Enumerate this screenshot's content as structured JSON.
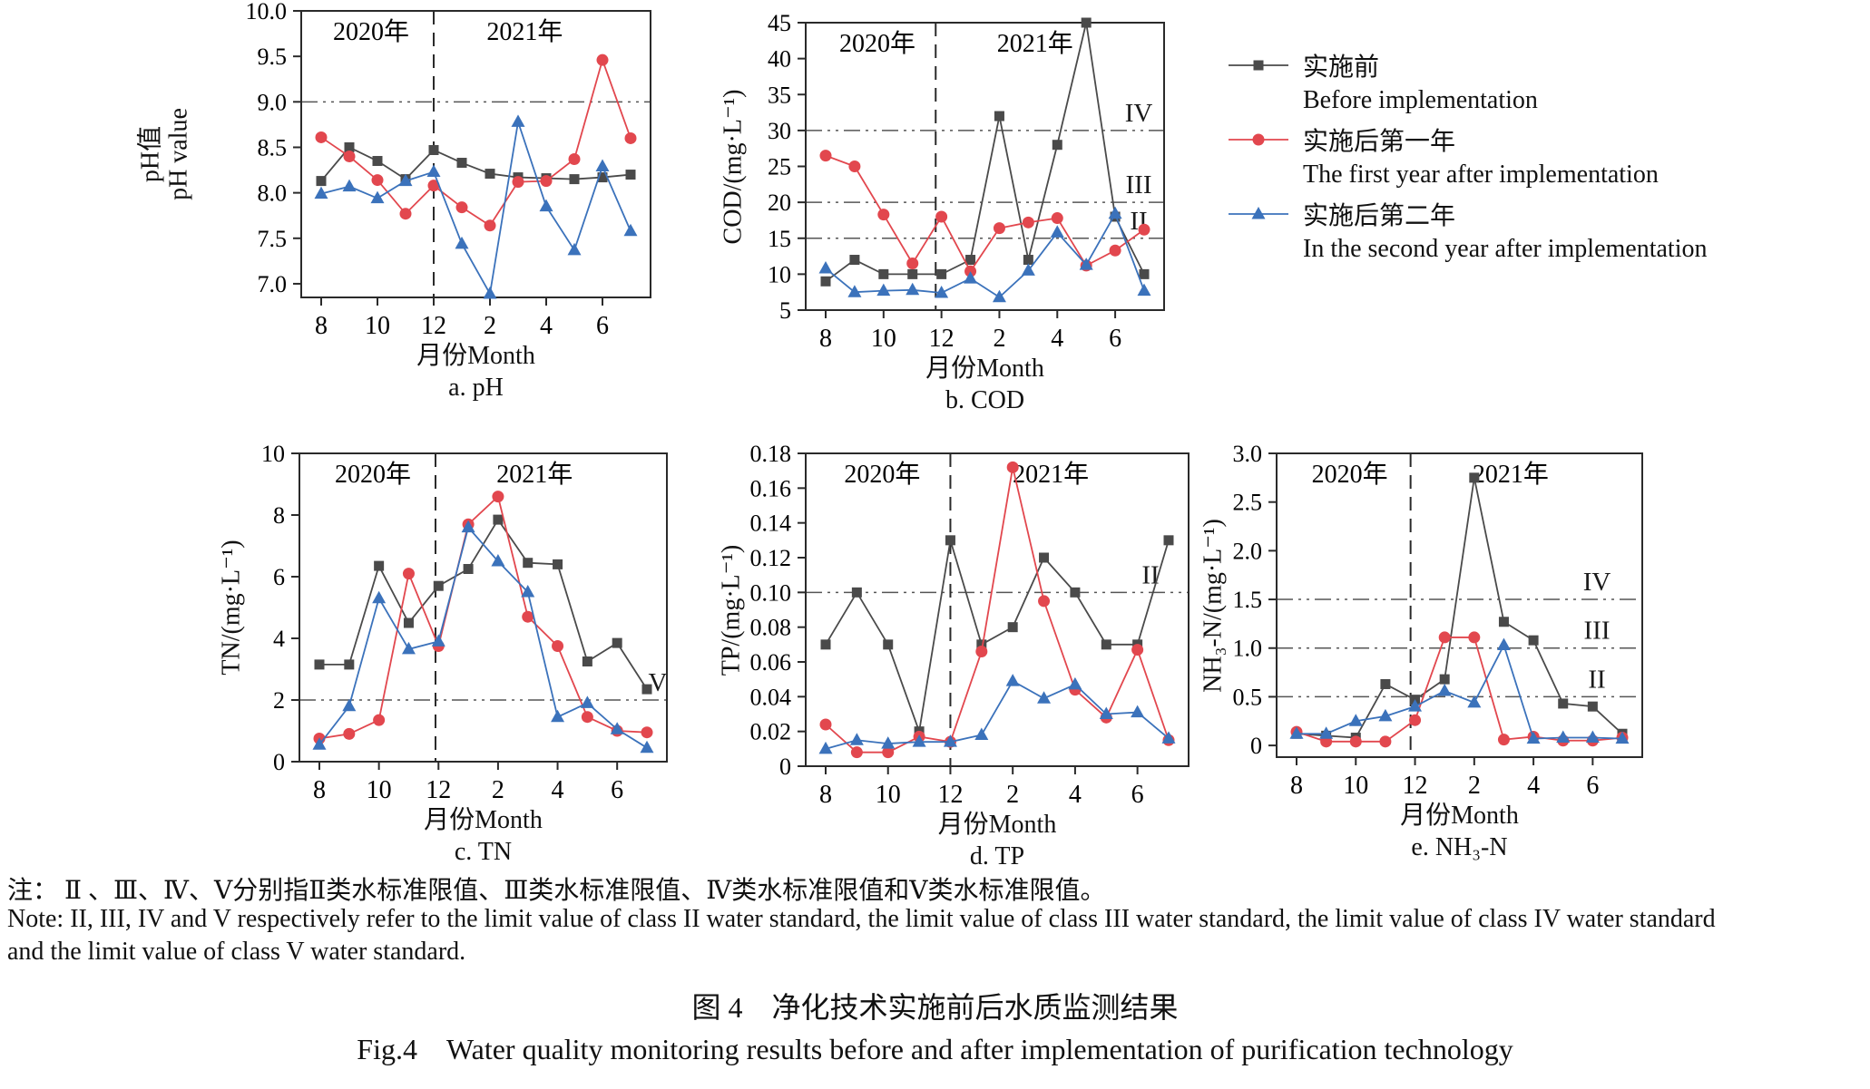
{
  "figure": {
    "note_cn": "注： Ⅱ 、Ⅲ、Ⅳ、Ⅴ分别指Ⅱ类水标准限值、Ⅲ类水标准限值、Ⅳ类水标准限值和Ⅴ类水标准限值。",
    "note_en_1": "Note: II, III, IV and V respectively refer to the limit value of class II water standard, the limit value of class III water standard, the limit value of class IV water standard",
    "note_en_2": "and the limit value of class V water standard.",
    "caption_cn": "图 4　净化技术实施前后水质监测结果",
    "caption_en": "Fig.4　Water quality monitoring results before and after implementation of purification technology"
  },
  "legend": {
    "items": [
      {
        "label_cn": "实施前",
        "label_en": "Before implementation"
      },
      {
        "label_cn": "实施后第一年",
        "label_en": "The first year after implementation"
      },
      {
        "label_cn": "实施后第二年",
        "label_en": "In the second year after implementation"
      }
    ]
  },
  "series_meta": [
    {
      "key": "before",
      "marker": "square",
      "color": "#4a4a4a"
    },
    {
      "key": "year1",
      "marker": "circle",
      "color": "#e2474e"
    },
    {
      "key": "year2",
      "marker": "triangle",
      "color": "#3b72bb"
    }
  ],
  "chart_data": [
    {
      "id": "ph",
      "type": "line",
      "sublabel": "a. pH",
      "xlabel": "月份Month",
      "ylabel_lines": [
        "pH值",
        "pH value"
      ],
      "categories": [
        "8",
        "9",
        "10",
        "11",
        "12",
        "1",
        "2",
        "3",
        "4",
        "5",
        "6",
        "7"
      ],
      "xtick_labels": [
        "8",
        "",
        "10",
        "",
        "12",
        "",
        "2",
        "",
        "4",
        "",
        "6",
        ""
      ],
      "ylim": [
        6.85,
        10.0
      ],
      "yticks": [
        "7.0",
        "7.5",
        "8.0",
        "8.5",
        "9.0",
        "9.5",
        "10.0"
      ],
      "ref_lines": [
        {
          "value": 9.0,
          "label": "",
          "dx": 30
        }
      ],
      "year_labels": [
        "2020年",
        "2021年"
      ],
      "divider_x": 4.0,
      "series": [
        {
          "name": "实施前",
          "values": [
            8.13,
            8.5,
            8.35,
            8.15,
            8.47,
            8.33,
            8.21,
            8.17,
            8.16,
            8.15,
            8.17,
            8.2
          ]
        },
        {
          "name": "实施后第一年",
          "values": [
            8.61,
            8.4,
            8.14,
            7.77,
            8.08,
            7.84,
            7.64,
            8.12,
            8.13,
            8.37,
            9.46,
            8.6
          ]
        },
        {
          "name": "实施后第二年",
          "values": [
            7.99,
            8.07,
            7.94,
            8.13,
            8.23,
            7.44,
            6.89,
            8.78,
            7.85,
            7.37,
            8.29,
            7.58
          ]
        }
      ]
    },
    {
      "id": "cod",
      "type": "line",
      "sublabel": "b. COD",
      "xlabel": "月份Month",
      "ylabel_lines": [
        "COD/(mg·L⁻¹)"
      ],
      "categories": [
        "8",
        "9",
        "10",
        "11",
        "12",
        "1",
        "2",
        "3",
        "4",
        "5",
        "6",
        "7"
      ],
      "xtick_labels": [
        "8",
        "",
        "10",
        "",
        "12",
        "",
        "2",
        "",
        "4",
        "",
        "6",
        ""
      ],
      "ylim": [
        5,
        45
      ],
      "yticks": [
        "5",
        "10",
        "15",
        "20",
        "25",
        "30",
        "35",
        "40",
        "45"
      ],
      "ref_lines": [
        {
          "value": 30,
          "label": "IV",
          "dx": 28
        },
        {
          "value": 20,
          "label": "III",
          "dx": 28
        },
        {
          "value": 15,
          "label": "II",
          "dx": 28
        }
      ],
      "year_labels": [
        "2020年",
        "2021年"
      ],
      "divider_x": 3.8,
      "series": [
        {
          "name": "实施前",
          "values": [
            9,
            12,
            10,
            10,
            10,
            12,
            32,
            12,
            28,
            45,
            18,
            10
          ]
        },
        {
          "name": "实施后第一年",
          "values": [
            26.5,
            25,
            18.3,
            11.5,
            18,
            10.4,
            16.4,
            17.2,
            17.8,
            11.2,
            13.3,
            16.2
          ]
        },
        {
          "name": "实施后第二年",
          "values": [
            10.8,
            7.5,
            7.7,
            7.8,
            7.4,
            9.4,
            6.8,
            10.5,
            15.8,
            11.3,
            18.4,
            7.7
          ]
        }
      ]
    },
    {
      "id": "tn",
      "type": "line",
      "sublabel": "c. TN",
      "xlabel": "月份Month",
      "ylabel_lines": [
        "TN/(mg·L⁻¹)"
      ],
      "categories": [
        "8",
        "9",
        "10",
        "11",
        "12",
        "1",
        "2",
        "3",
        "4",
        "5",
        "6",
        "7"
      ],
      "xtick_labels": [
        "8",
        "",
        "10",
        "",
        "12",
        "",
        "2",
        "",
        "4",
        "",
        "6",
        ""
      ],
      "ylim": [
        0,
        10
      ],
      "yticks": [
        "0",
        "2",
        "4",
        "6",
        "8",
        "10"
      ],
      "ref_lines": [
        {
          "value": 2,
          "label": "V",
          "dx": 10
        }
      ],
      "year_labels": [
        "2020年",
        "2021年"
      ],
      "divider_x": 3.9,
      "series": [
        {
          "name": "实施前",
          "values": [
            3.15,
            3.15,
            6.35,
            4.5,
            5.7,
            6.25,
            7.85,
            6.45,
            6.4,
            3.25,
            3.85,
            2.35
          ]
        },
        {
          "name": "实施后第一年",
          "values": [
            0.75,
            0.9,
            1.35,
            6.1,
            3.75,
            7.7,
            8.6,
            4.7,
            3.75,
            1.45,
            1.0,
            0.95
          ]
        },
        {
          "name": "实施后第二年",
          "values": [
            0.55,
            1.8,
            5.3,
            3.65,
            3.9,
            7.6,
            6.5,
            5.5,
            1.45,
            1.9,
            1.05,
            0.45
          ]
        }
      ]
    },
    {
      "id": "tp",
      "type": "line",
      "sublabel": "d. TP",
      "xlabel": "月份Month",
      "ylabel_lines": [
        "TP/(mg·L⁻¹)"
      ],
      "categories": [
        "8",
        "9",
        "10",
        "11",
        "12",
        "1",
        "2",
        "3",
        "4",
        "5",
        "6",
        "7"
      ],
      "xtick_labels": [
        "8",
        "",
        "10",
        "",
        "12",
        "",
        "2",
        "",
        "4",
        "",
        "6",
        ""
      ],
      "ylim": [
        0,
        0.18
      ],
      "yticks": [
        "0",
        "0.02",
        "0.04",
        "0.06",
        "0.08",
        "0.10",
        "0.12",
        "0.14",
        "0.16",
        "0.18"
      ],
      "ref_lines": [
        {
          "value": 0.1,
          "label": "II",
          "dx": 42
        }
      ],
      "year_labels": [
        "2020年",
        "2021年"
      ],
      "divider_x": 4.0,
      "series": [
        {
          "name": "实施前",
          "values": [
            0.07,
            0.1,
            0.07,
            0.02,
            0.13,
            0.07,
            0.08,
            0.12,
            0.1,
            0.07,
            0.07,
            0.13
          ]
        },
        {
          "name": "实施后第一年",
          "values": [
            0.024,
            0.008,
            0.008,
            0.017,
            0.014,
            0.066,
            0.172,
            0.095,
            0.044,
            0.028,
            0.067,
            0.015
          ]
        },
        {
          "name": "实施后第二年",
          "values": [
            0.01,
            0.015,
            0.013,
            0.014,
            0.014,
            0.018,
            0.049,
            0.039,
            0.047,
            0.03,
            0.031,
            0.016
          ]
        }
      ]
    },
    {
      "id": "nh3n",
      "type": "line",
      "sublabel": "e. NH₃-N",
      "xlabel": "月份Month",
      "ylabel_lines": [
        "NH₃-N/(mg·L⁻¹)"
      ],
      "categories": [
        "8",
        "9",
        "10",
        "11",
        "12",
        "1",
        "2",
        "3",
        "4",
        "5",
        "6",
        "7"
      ],
      "xtick_labels": [
        "8",
        "",
        "10",
        "",
        "12",
        "",
        "2",
        "",
        "4",
        "",
        "6",
        ""
      ],
      "ylim": [
        -0.12,
        3.0
      ],
      "yticks": [
        "0",
        "0.5",
        "1.0",
        "1.5",
        "2.0",
        "2.5",
        "3.0"
      ],
      "ref_lines": [
        {
          "value": 1.5,
          "label": "IV",
          "dx": 50
        },
        {
          "value": 1.0,
          "label": "III",
          "dx": 50
        },
        {
          "value": 0.5,
          "label": "II",
          "dx": 50
        }
      ],
      "year_labels": [
        "2020年",
        "2021年"
      ],
      "divider_x": 3.85,
      "series": [
        {
          "name": "实施前",
          "values": [
            0.12,
            0.1,
            0.08,
            0.63,
            0.47,
            0.68,
            2.75,
            1.27,
            1.08,
            0.43,
            0.4,
            0.12
          ]
        },
        {
          "name": "实施后第一年",
          "values": [
            0.14,
            0.04,
            0.04,
            0.04,
            0.26,
            1.11,
            1.11,
            0.06,
            0.09,
            0.05,
            0.05,
            0.08
          ]
        },
        {
          "name": "实施后第二年",
          "values": [
            0.12,
            0.12,
            0.25,
            0.3,
            0.4,
            0.56,
            0.44,
            1.03,
            0.07,
            0.08,
            0.08,
            0.07
          ]
        }
      ]
    }
  ]
}
